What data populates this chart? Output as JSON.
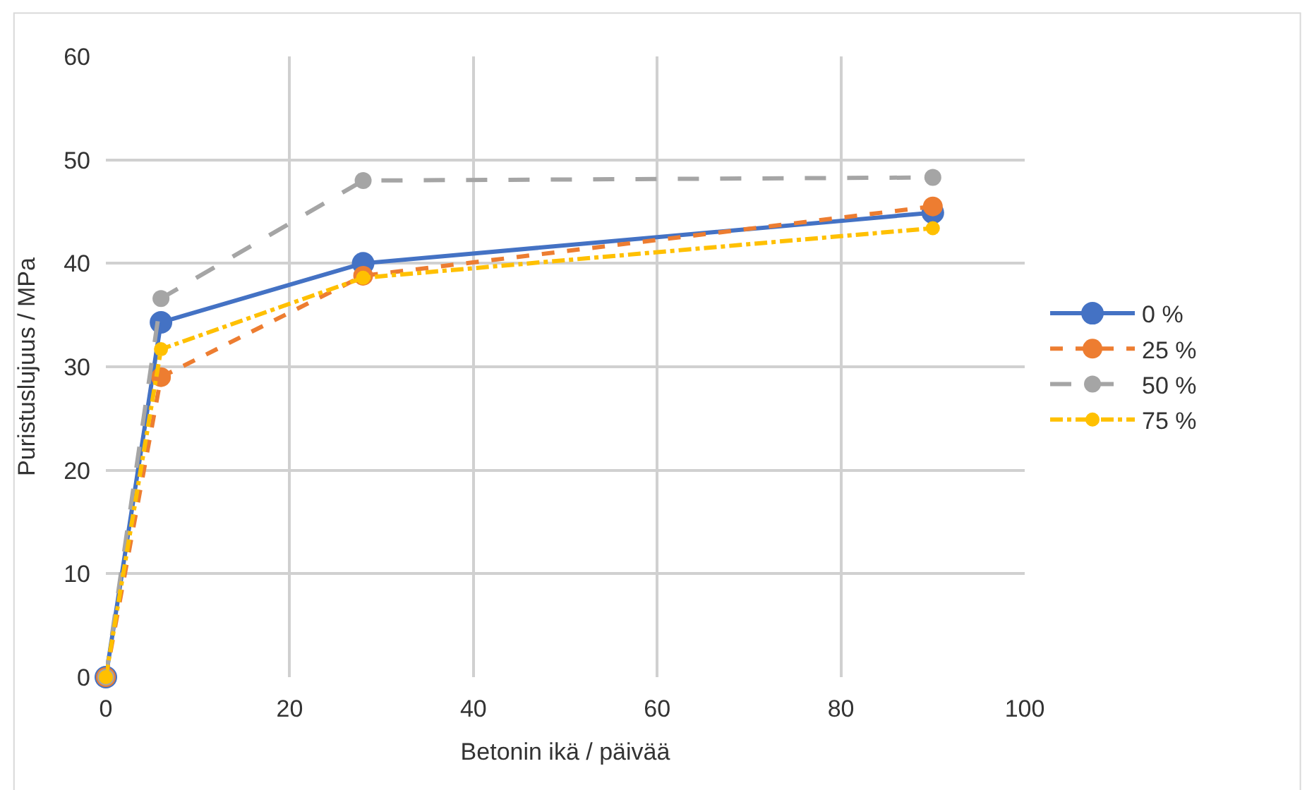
{
  "chart_data": {
    "type": "line",
    "xlabel": "Betonin ikä / päivää",
    "ylabel": "Puristuslujuus / MPa",
    "x": [
      0,
      6,
      28,
      90
    ],
    "series": [
      {
        "name": "0 %",
        "color": "#4472c4",
        "line_style": "solid",
        "values": [
          0,
          34.3,
          40.0,
          44.9
        ]
      },
      {
        "name": "25 %",
        "color": "#ed7d31",
        "line_style": "dashed",
        "values": [
          0,
          29.0,
          38.8,
          45.5
        ]
      },
      {
        "name": "50 %",
        "color": "#a5a5a5",
        "line_style": "longdash",
        "values": [
          0,
          36.6,
          48.0,
          48.3
        ]
      },
      {
        "name": "75 %",
        "color": "#ffc000",
        "line_style": "dashdot",
        "values": [
          0,
          31.7,
          38.6,
          43.4
        ]
      }
    ],
    "xlim": [
      0,
      100
    ],
    "xticks": [
      0,
      20,
      40,
      60,
      80,
      100
    ],
    "ylim": [
      0,
      60
    ],
    "yticks": [
      0,
      10,
      20,
      30,
      40,
      50,
      60
    ],
    "grid": true,
    "legend": "right",
    "marker": "circle"
  }
}
